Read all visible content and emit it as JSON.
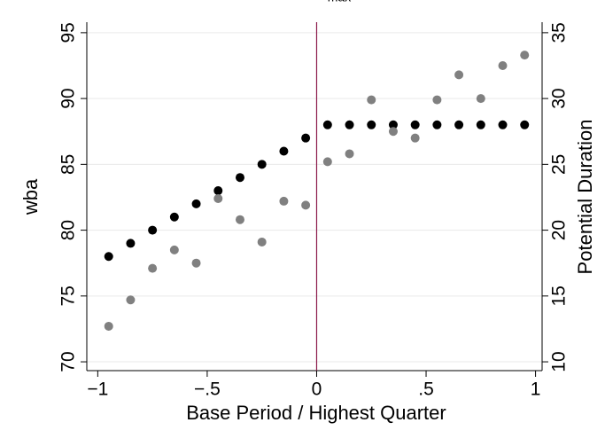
{
  "chart_data": {
    "type": "scatter",
    "title": "max",
    "x_label": "Base Period / Highest Quarter",
    "y_label": "wba",
    "y2_label": "Potential Duration",
    "series": [
      {
        "color": "#000000",
        "x": [
          -0.95,
          -0.85,
          -0.75,
          -0.65,
          -0.55,
          -0.45,
          -0.35,
          -0.25,
          -0.15,
          -0.05,
          0.05,
          0.15,
          0.25,
          0.35,
          0.45,
          0.55,
          0.65,
          0.75,
          0.85,
          0.95
        ],
        "values": [
          78,
          79,
          80,
          81,
          82,
          83,
          84,
          85,
          86,
          87,
          88,
          88,
          88,
          88,
          88,
          88,
          88,
          88,
          88,
          88
        ]
      },
      {
        "color": "#808080",
        "axis": "y2",
        "x": [
          -0.95,
          -0.85,
          -0.75,
          -0.65,
          -0.55,
          -0.45,
          -0.35,
          -0.25,
          -0.15,
          -0.05,
          0.05,
          0.15,
          0.25,
          0.35,
          0.45,
          0.55,
          0.65,
          0.75,
          0.85,
          0.95
        ],
        "values": [
          12.7,
          14.7,
          17.1,
          18.5,
          17.5,
          22.4,
          20.8,
          19.1,
          22.2,
          21.9,
          25.2,
          25.8,
          29.9,
          27.5,
          27.0,
          29.9,
          31.8,
          30.0,
          32.5,
          33.3
        ]
      }
    ],
    "xlim": [
      -1.05,
      1.03
    ],
    "xticks": [
      {
        "value": -1,
        "label": "−1"
      },
      {
        "value": -0.5,
        "label": "−.5"
      },
      0,
      {
        "value": 0.5,
        "label": ".5"
      },
      1
    ],
    "ylim": [
      69.33,
      95.8
    ],
    "yticks": [
      70,
      75,
      80,
      85,
      90,
      95
    ],
    "y2lim": [
      9.33,
      35.8
    ],
    "y2ticks": [
      10,
      15,
      20,
      25,
      30,
      35
    ],
    "grid": true,
    "reference_line": {
      "x": 0,
      "color": "#8b1a4a"
    }
  }
}
